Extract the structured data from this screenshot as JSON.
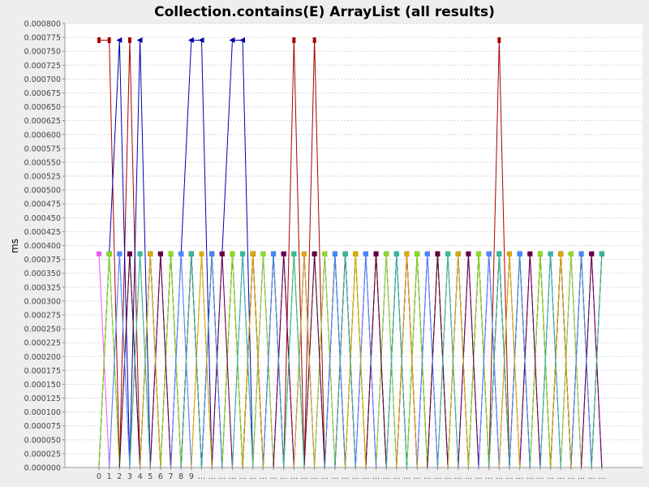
{
  "chart_data": {
    "type": "line",
    "title": "Collection.contains(E) ArrayList (all results)",
    "xlabel": "",
    "ylabel": "ms",
    "ylim": [
      0,
      0.0008
    ],
    "y_ticks": [
      "0.000000",
      "0.000025",
      "0.000050",
      "0.000075",
      "0.000100",
      "0.000125",
      "0.000150",
      "0.000175",
      "0.000200",
      "0.000225",
      "0.000250",
      "0.000275",
      "0.000300",
      "0.000325",
      "0.000350",
      "0.000375",
      "0.000400",
      "0.000425",
      "0.000450",
      "0.000475",
      "0.000500",
      "0.000525",
      "0.000550",
      "0.000575",
      "0.000600",
      "0.000625",
      "0.000650",
      "0.000675",
      "0.000700",
      "0.000725",
      "0.000750",
      "0.000775",
      "0.000800"
    ],
    "categories": [
      "0",
      "1",
      "2",
      "3",
      "4",
      "5",
      "6",
      "7",
      "8",
      "9",
      "...",
      "...",
      "...",
      "...",
      "...",
      "...",
      "...",
      "...",
      "...",
      "...",
      "...",
      "...",
      "...",
      "...",
      "...",
      "...",
      "...",
      "...",
      "...",
      "...",
      "...",
      "...",
      "...",
      "...",
      "...",
      "...",
      "...",
      "...",
      "...",
      "...",
      "...",
      "...",
      "...",
      "...",
      "...",
      "...",
      "...",
      "...",
      "...",
      "..."
    ],
    "grid": true,
    "series": [
      {
        "color": "#aa0000",
        "values": [
          0.00077,
          0.00077,
          0,
          0.00077,
          0,
          0.000385,
          0,
          0.000385,
          0,
          0.000385,
          0,
          0.000385,
          0,
          0.000385,
          0,
          0.000385,
          0,
          0.000385,
          0,
          0.00077,
          0,
          0.00077,
          0,
          0.000385,
          0,
          0.000385,
          0,
          0.000385,
          0,
          0.000385,
          0,
          0.000385,
          0,
          0.000385,
          0,
          0.000385,
          0,
          0.000385,
          0,
          0.00077,
          0,
          0.000385,
          0,
          0.000385,
          0,
          0.000385,
          0,
          0.000385,
          0,
          0.000385
        ]
      },
      {
        "color": "#0000aa",
        "values": [
          0,
          0.000385,
          0.00077,
          0,
          0.00077,
          0,
          0.000385,
          0,
          0.000385,
          0.00077,
          0.00077,
          0,
          0.000385,
          0.00077,
          0.00077,
          0,
          0.000385,
          0,
          0.000385,
          0,
          0.000385,
          0,
          0.000385,
          0,
          0.000385,
          0,
          0.000385,
          0,
          0.000385,
          0,
          0.000385,
          0,
          0.000385,
          0,
          0.000385,
          0,
          0.000385,
          0,
          0.000385,
          0,
          0.000385,
          0,
          0.000385,
          0,
          0.000385,
          0,
          0.000385,
          0,
          0.000385,
          0
        ]
      },
      {
        "color": "#006600",
        "values": [
          0,
          0.000385,
          0,
          0.000385,
          0,
          0.000385,
          0,
          0.000385,
          0,
          0.000385,
          0,
          0.000385,
          0,
          0.000385,
          0,
          0.000385,
          0,
          0.000385,
          0,
          0.000385,
          0,
          0.000385,
          0,
          0.000385,
          0,
          0.000385,
          0,
          0.000385,
          0,
          0.000385,
          0,
          0.000385,
          0,
          0.000385,
          0,
          0.000385,
          0,
          0.000385,
          0,
          0.000385,
          0,
          0.000385,
          0,
          0.000385,
          0,
          0.000385,
          0,
          0.000385,
          0,
          0.000385
        ]
      },
      {
        "color": "#ee55ee",
        "values": [
          0.000385,
          0,
          0.000385,
          0,
          0.000385,
          0,
          0.000385,
          0,
          0.000385,
          0,
          0.000385,
          0,
          0.000385,
          0,
          0.000385,
          0,
          0.000385,
          0,
          0.000385,
          0,
          0.000385,
          0,
          0.000385,
          0,
          0.000385,
          0,
          0.000385,
          0,
          0.000385,
          0,
          0.000385,
          0,
          0.000385,
          0,
          0.000385,
          0,
          0.000385,
          0,
          0.000385,
          0,
          0.000385,
          0,
          0.000385,
          0,
          0.000385,
          0,
          0.000385,
          0,
          0.000385,
          0
        ]
      },
      {
        "color": "#88dd22",
        "values": [
          0,
          0.000385,
          0,
          0,
          0.000385,
          0,
          0,
          0.000385,
          0,
          0,
          0.000385,
          0,
          0,
          0.000385,
          0,
          0,
          0.000385,
          0,
          0,
          0.000385,
          0,
          0,
          0.000385,
          0,
          0,
          0.000385,
          0,
          0,
          0.000385,
          0,
          0,
          0.000385,
          0,
          0,
          0.000385,
          0,
          0,
          0.000385,
          0,
          0,
          0.000385,
          0,
          0,
          0.000385,
          0,
          0,
          0.000385,
          0,
          0,
          0
        ]
      },
      {
        "color": "#660044",
        "values": [
          0,
          0,
          0,
          0.000385,
          0,
          0,
          0.000385,
          0,
          0,
          0.000385,
          0,
          0,
          0.000385,
          0,
          0,
          0.000385,
          0,
          0,
          0.000385,
          0,
          0,
          0.000385,
          0,
          0,
          0.000385,
          0,
          0,
          0.000385,
          0,
          0,
          0.000385,
          0,
          0,
          0.000385,
          0,
          0,
          0.000385,
          0,
          0,
          0.000385,
          0,
          0,
          0.000385,
          0,
          0,
          0.000385,
          0,
          0,
          0.000385,
          0
        ]
      },
      {
        "color": "#4488ff",
        "values": [
          0,
          0,
          0.000385,
          0,
          0,
          0.000385,
          0,
          0,
          0.000385,
          0,
          0,
          0.000385,
          0,
          0,
          0.000385,
          0,
          0,
          0.000385,
          0,
          0,
          0.000385,
          0,
          0,
          0.000385,
          0,
          0,
          0.000385,
          0,
          0,
          0.000385,
          0,
          0,
          0.000385,
          0,
          0,
          0.000385,
          0,
          0,
          0.000385,
          0,
          0,
          0.000385,
          0,
          0,
          0.000385,
          0,
          0,
          0.000385,
          0,
          0
        ]
      },
      {
        "color": "#ddaa00",
        "values": [
          0,
          0,
          0,
          0,
          0,
          0.000385,
          0,
          0,
          0,
          0,
          0.000385,
          0,
          0,
          0,
          0,
          0.000385,
          0,
          0,
          0,
          0,
          0.000385,
          0,
          0,
          0,
          0,
          0.000385,
          0,
          0,
          0,
          0,
          0.000385,
          0,
          0,
          0,
          0,
          0.000385,
          0,
          0,
          0,
          0,
          0.000385,
          0,
          0,
          0,
          0,
          0.000385,
          0,
          0,
          0,
          0
        ]
      },
      {
        "color": "#33bb99",
        "values": [
          0,
          0,
          0,
          0,
          0.000385,
          0,
          0,
          0,
          0,
          0.000385,
          0,
          0,
          0,
          0,
          0.000385,
          0,
          0,
          0,
          0,
          0.000385,
          0,
          0,
          0,
          0,
          0.000385,
          0,
          0,
          0,
          0,
          0.000385,
          0,
          0,
          0,
          0,
          0.000385,
          0,
          0,
          0,
          0,
          0.000385,
          0,
          0,
          0,
          0,
          0.000385,
          0,
          0,
          0,
          0,
          0.000385
        ]
      }
    ]
  }
}
